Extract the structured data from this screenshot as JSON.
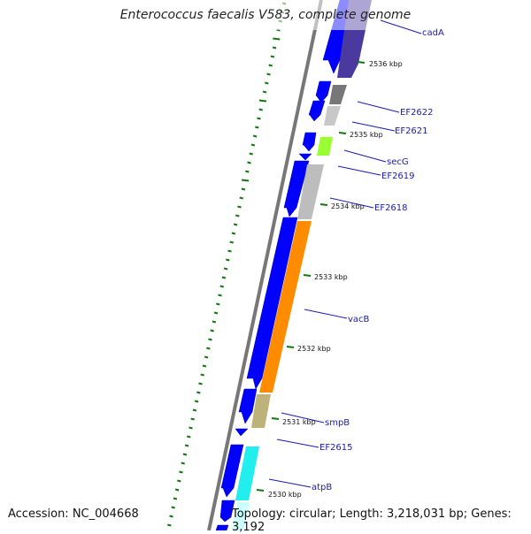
{
  "title": "Enterococcus faecalis V583, complete genome",
  "accession": "Accession: NC_004668",
  "summary": "Topology: circular; Length: 3,218,031 bp; Genes: 3,192",
  "colors": {
    "cds_forward": "#0000ff",
    "backbone": "#777777",
    "gc_skew": "#117711",
    "label": "#1a1ab0"
  },
  "kbp_ticks": [
    "2536 kbp",
    "2535 kbp",
    "2534 kbp",
    "2533 kbp",
    "2532 kbp",
    "2531 kbp",
    "2530 kbp"
  ],
  "genes": [
    {
      "name": "cadA",
      "color": "#4a3aa0"
    },
    {
      "name": "EF2622",
      "color": "#c8c8c8"
    },
    {
      "name": "EF2621",
      "color": "#bbbbbb"
    },
    {
      "name": "secG",
      "color": "#99ff33"
    },
    {
      "name": "EF2619",
      "color": "#0000ff"
    },
    {
      "name": "EF2618",
      "color": "#bdbdbd"
    },
    {
      "name": "vacB",
      "color": "#ff8c00"
    },
    {
      "name": "smpB",
      "color": "#bdb27a"
    },
    {
      "name": "EF2615",
      "color": "#0000ff"
    },
    {
      "name": "atpB",
      "color": "#22eeee"
    }
  ]
}
